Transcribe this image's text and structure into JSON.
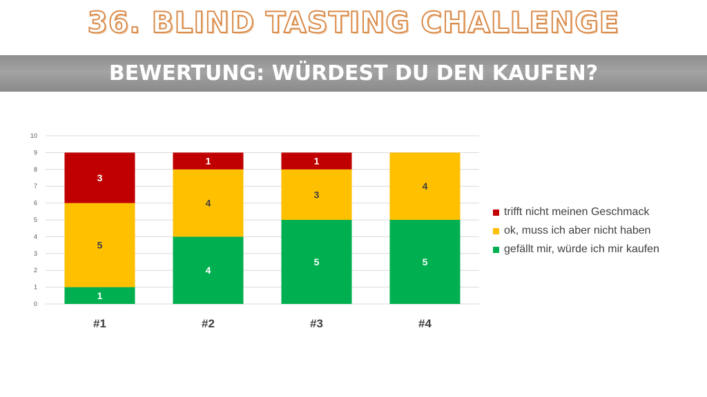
{
  "header": {
    "title": "36. BLIND TASTING CHALLENGE",
    "subtitle": "BEWERTUNG: WÜRDEST DU DEN KAUFEN?"
  },
  "colors": {
    "green": "#00b050",
    "yellow": "#ffc000",
    "red": "#c00000",
    "grid": "#d9d9d9",
    "axis_text": "#595959"
  },
  "chart_data": {
    "type": "bar",
    "stacked": true,
    "categories": [
      "#1",
      "#2",
      "#3",
      "#4"
    ],
    "series": [
      {
        "name": "gefällt mir, würde ich mir kaufen",
        "color": "#00b050",
        "values": [
          1,
          4,
          5,
          5
        ]
      },
      {
        "name": "ok, muss ich aber nicht haben",
        "color": "#ffc000",
        "values": [
          5,
          4,
          3,
          4
        ]
      },
      {
        "name": "trifft nicht meinen Geschmack",
        "color": "#c00000",
        "values": [
          3,
          1,
          1,
          0
        ]
      }
    ],
    "ylim": [
      0,
      10
    ],
    "yticks": [
      0,
      1,
      2,
      3,
      4,
      5,
      6,
      7,
      8,
      9,
      10
    ],
    "grid": true,
    "legend_position": "right",
    "data_labels": true
  }
}
